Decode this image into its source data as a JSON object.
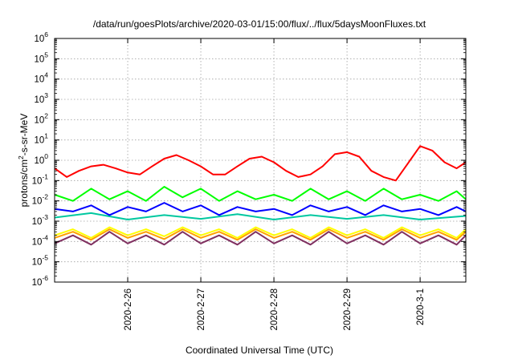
{
  "chart_data": {
    "type": "line",
    "title": "/data/run/goesPlots/archive/2020-03-01/15:00/flux/../flux/5daysMoonFluxes.txt",
    "xlabel": "Coordinated Universal Time (UTC)",
    "ylabel": {
      "base": "protons/cm",
      "sup": "2",
      "rest": "-s-sr-MeV"
    },
    "yscale": "log",
    "ylim": [
      1e-06,
      1000000.0
    ],
    "xlim": [
      "2020-02-25T00:00",
      "2020-03-01T15:00"
    ],
    "grid": true,
    "x_ticks": [
      "2020-2-26",
      "2020-2-27",
      "2020-2-28",
      "2020-2-29",
      "2020-3-1"
    ],
    "y_ticks": [
      {
        "base": "10",
        "exp": "-6"
      },
      {
        "base": "10",
        "exp": "-5"
      },
      {
        "base": "10",
        "exp": "-4"
      },
      {
        "base": "10",
        "exp": "-3"
      },
      {
        "base": "10",
        "exp": "-2"
      },
      {
        "base": "10",
        "exp": "-1"
      },
      {
        "base": "10",
        "exp": "0"
      },
      {
        "base": "10",
        "exp": "1"
      },
      {
        "base": "10",
        "exp": "2"
      },
      {
        "base": "10",
        "exp": "3"
      },
      {
        "base": "10",
        "exp": "4"
      },
      {
        "base": "10",
        "exp": "5"
      },
      {
        "base": "10",
        "exp": "6"
      }
    ],
    "series": [
      {
        "color": "#ff0000",
        "x": [
          "2020-02-25T00:00",
          "2020-02-25T04:00",
          "2020-02-25T08:00",
          "2020-02-25T12:00",
          "2020-02-25T16:00",
          "2020-02-25T20:00",
          "2020-02-26T00:00",
          "2020-02-26T04:00",
          "2020-02-26T08:00",
          "2020-02-26T12:00",
          "2020-02-26T16:00",
          "2020-02-26T20:00",
          "2020-02-27T00:00",
          "2020-02-27T04:00",
          "2020-02-27T08:00",
          "2020-02-27T12:00",
          "2020-02-27T16:00",
          "2020-02-27T20:00",
          "2020-02-28T00:00",
          "2020-02-28T04:00",
          "2020-02-28T08:00",
          "2020-02-28T12:00",
          "2020-02-28T16:00",
          "2020-02-28T20:00",
          "2020-02-29T00:00",
          "2020-02-29T04:00",
          "2020-02-29T08:00",
          "2020-02-29T12:00",
          "2020-02-29T16:00",
          "2020-02-29T20:00",
          "2020-03-01T00:00",
          "2020-03-01T04:00",
          "2020-03-01T08:00",
          "2020-03-01T12:00",
          "2020-03-01T15:00"
        ],
        "values": [
          0.4,
          0.15,
          0.3,
          0.5,
          0.6,
          0.4,
          0.25,
          0.2,
          0.5,
          1.2,
          1.8,
          1.0,
          0.5,
          0.2,
          0.2,
          0.5,
          1.2,
          1.5,
          0.8,
          0.3,
          0.15,
          0.2,
          0.5,
          2.0,
          2.5,
          1.5,
          0.3,
          0.15,
          0.1,
          0.7,
          5.0,
          3.0,
          0.8,
          0.4,
          0.8
        ]
      },
      {
        "color": "#00ff00",
        "x": [
          "2020-02-25T00:00",
          "2020-02-25T06:00",
          "2020-02-25T12:00",
          "2020-02-25T18:00",
          "2020-02-26T00:00",
          "2020-02-26T06:00",
          "2020-02-26T12:00",
          "2020-02-26T18:00",
          "2020-02-27T00:00",
          "2020-02-27T06:00",
          "2020-02-27T12:00",
          "2020-02-27T18:00",
          "2020-02-28T00:00",
          "2020-02-28T06:00",
          "2020-02-28T12:00",
          "2020-02-28T18:00",
          "2020-02-29T00:00",
          "2020-02-29T06:00",
          "2020-02-29T12:00",
          "2020-02-29T18:00",
          "2020-03-01T00:00",
          "2020-03-01T06:00",
          "2020-03-01T12:00",
          "2020-03-01T15:00"
        ],
        "values": [
          0.02,
          0.01,
          0.04,
          0.012,
          0.03,
          0.01,
          0.05,
          0.015,
          0.04,
          0.01,
          0.03,
          0.012,
          0.02,
          0.01,
          0.04,
          0.012,
          0.03,
          0.01,
          0.04,
          0.012,
          0.02,
          0.01,
          0.03,
          0.012
        ]
      },
      {
        "color": "#0000ff",
        "x": [
          "2020-02-25T00:00",
          "2020-02-25T06:00",
          "2020-02-25T12:00",
          "2020-02-25T18:00",
          "2020-02-26T00:00",
          "2020-02-26T06:00",
          "2020-02-26T12:00",
          "2020-02-26T18:00",
          "2020-02-27T00:00",
          "2020-02-27T06:00",
          "2020-02-27T12:00",
          "2020-02-27T18:00",
          "2020-02-28T00:00",
          "2020-02-28T06:00",
          "2020-02-28T12:00",
          "2020-02-28T18:00",
          "2020-02-29T00:00",
          "2020-02-29T06:00",
          "2020-02-29T12:00",
          "2020-02-29T18:00",
          "2020-03-01T00:00",
          "2020-03-01T06:00",
          "2020-03-01T12:00",
          "2020-03-01T15:00"
        ],
        "values": [
          0.004,
          0.003,
          0.006,
          0.002,
          0.005,
          0.003,
          0.008,
          0.003,
          0.006,
          0.002,
          0.005,
          0.003,
          0.004,
          0.002,
          0.006,
          0.003,
          0.005,
          0.002,
          0.006,
          0.003,
          0.004,
          0.002,
          0.005,
          0.003
        ]
      },
      {
        "color": "#00c8a0",
        "x": [
          "2020-02-25T00:00",
          "2020-02-25T12:00",
          "2020-02-26T00:00",
          "2020-02-26T12:00",
          "2020-02-27T00:00",
          "2020-02-27T12:00",
          "2020-02-28T00:00",
          "2020-02-28T12:00",
          "2020-02-29T00:00",
          "2020-02-29T12:00",
          "2020-03-01T00:00",
          "2020-03-01T15:00"
        ],
        "values": [
          0.0015,
          0.0025,
          0.0012,
          0.002,
          0.0013,
          0.0022,
          0.0012,
          0.002,
          0.0013,
          0.002,
          0.0012,
          0.0018
        ]
      },
      {
        "color": "#ffff00",
        "x": [
          "2020-02-25T00:00",
          "2020-02-25T06:00",
          "2020-02-25T12:00",
          "2020-02-25T18:00",
          "2020-02-26T00:00",
          "2020-02-26T06:00",
          "2020-02-26T12:00",
          "2020-02-26T18:00",
          "2020-02-27T00:00",
          "2020-02-27T06:00",
          "2020-02-27T12:00",
          "2020-02-27T18:00",
          "2020-02-28T00:00",
          "2020-02-28T06:00",
          "2020-02-28T12:00",
          "2020-02-28T18:00",
          "2020-02-29T00:00",
          "2020-02-29T06:00",
          "2020-02-29T12:00",
          "2020-02-29T18:00",
          "2020-03-01T00:00",
          "2020-03-01T06:00",
          "2020-03-01T12:00",
          "2020-03-01T15:00"
        ],
        "values": [
          0.0002,
          0.0004,
          0.00015,
          0.0005,
          0.0002,
          0.0004,
          0.00018,
          0.0005,
          0.0002,
          0.0004,
          0.00015,
          0.0005,
          0.0002,
          0.0004,
          0.00015,
          0.0005,
          0.0002,
          0.0004,
          0.00015,
          0.0005,
          0.0002,
          0.0004,
          0.00015,
          0.0004
        ]
      },
      {
        "color": "#ffa000",
        "x": [
          "2020-02-25T00:00",
          "2020-02-25T06:00",
          "2020-02-25T12:00",
          "2020-02-25T18:00",
          "2020-02-26T00:00",
          "2020-02-26T06:00",
          "2020-02-26T12:00",
          "2020-02-26T18:00",
          "2020-02-27T00:00",
          "2020-02-27T06:00",
          "2020-02-27T12:00",
          "2020-02-27T18:00",
          "2020-02-28T00:00",
          "2020-02-28T06:00",
          "2020-02-28T12:00",
          "2020-02-28T18:00",
          "2020-02-29T00:00",
          "2020-02-29T06:00",
          "2020-02-29T12:00",
          "2020-02-29T18:00",
          "2020-03-01T00:00",
          "2020-03-01T06:00",
          "2020-03-01T12:00",
          "2020-03-01T15:00"
        ],
        "values": [
          0.00015,
          0.0003,
          0.00012,
          0.0004,
          0.00015,
          0.0003,
          0.00013,
          0.0004,
          0.00015,
          0.0003,
          0.00012,
          0.0004,
          0.00015,
          0.0003,
          0.00012,
          0.0004,
          0.00015,
          0.0003,
          0.00012,
          0.0004,
          0.00015,
          0.0003,
          0.00012,
          0.0003
        ]
      },
      {
        "color": "#803060",
        "x": [
          "2020-02-25T00:00",
          "2020-02-25T06:00",
          "2020-02-25T12:00",
          "2020-02-25T18:00",
          "2020-02-26T00:00",
          "2020-02-26T06:00",
          "2020-02-26T12:00",
          "2020-02-26T18:00",
          "2020-02-27T00:00",
          "2020-02-27T06:00",
          "2020-02-27T12:00",
          "2020-02-27T18:00",
          "2020-02-28T00:00",
          "2020-02-28T06:00",
          "2020-02-28T12:00",
          "2020-02-28T18:00",
          "2020-02-29T00:00",
          "2020-02-29T06:00",
          "2020-02-29T12:00",
          "2020-02-29T18:00",
          "2020-03-01T00:00",
          "2020-03-01T06:00",
          "2020-03-01T12:00",
          "2020-03-01T15:00"
        ],
        "values": [
          8e-05,
          0.0002,
          7e-05,
          0.0003,
          8e-05,
          0.0002,
          7e-05,
          0.0003,
          8e-05,
          0.0002,
          7e-05,
          0.0003,
          8e-05,
          0.0002,
          7e-05,
          0.0003,
          8e-05,
          0.0002,
          7e-05,
          0.0003,
          8e-05,
          0.0002,
          7e-05,
          0.0002
        ]
      }
    ]
  }
}
